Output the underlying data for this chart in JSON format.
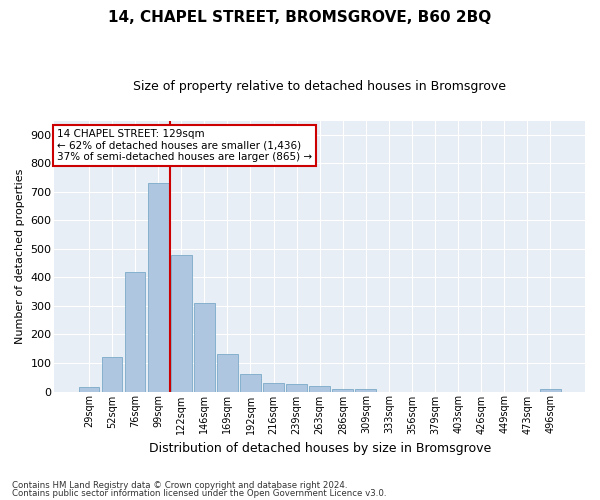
{
  "title1": "14, CHAPEL STREET, BROMSGROVE, B60 2BQ",
  "title2": "Size of property relative to detached houses in Bromsgrove",
  "xlabel": "Distribution of detached houses by size in Bromsgrove",
  "ylabel": "Number of detached properties",
  "categories": [
    "29sqm",
    "52sqm",
    "76sqm",
    "99sqm",
    "122sqm",
    "146sqm",
    "169sqm",
    "192sqm",
    "216sqm",
    "239sqm",
    "263sqm",
    "286sqm",
    "309sqm",
    "333sqm",
    "356sqm",
    "379sqm",
    "403sqm",
    "426sqm",
    "449sqm",
    "473sqm",
    "496sqm"
  ],
  "values": [
    15,
    120,
    420,
    730,
    480,
    310,
    130,
    60,
    30,
    25,
    20,
    10,
    10,
    0,
    0,
    0,
    0,
    0,
    0,
    0,
    10
  ],
  "bar_color": "#aec6df",
  "bar_edge_color": "#7aaac8",
  "bg_color": "#e8eef5",
  "grid_color": "#ffffff",
  "vline_x": 3.5,
  "vline_color": "#cc0000",
  "annotation_text": "14 CHAPEL STREET: 129sqm\n← 62% of detached houses are smaller (1,436)\n37% of semi-detached houses are larger (865) →",
  "annotation_box_color": "#ffffff",
  "annotation_box_edge": "#cc0000",
  "ylim": [
    0,
    950
  ],
  "yticks": [
    0,
    100,
    200,
    300,
    400,
    500,
    600,
    700,
    800,
    900
  ],
  "footer1": "Contains HM Land Registry data © Crown copyright and database right 2024.",
  "footer2": "Contains public sector information licensed under the Open Government Licence v3.0.",
  "fig_bg": "#ffffff"
}
